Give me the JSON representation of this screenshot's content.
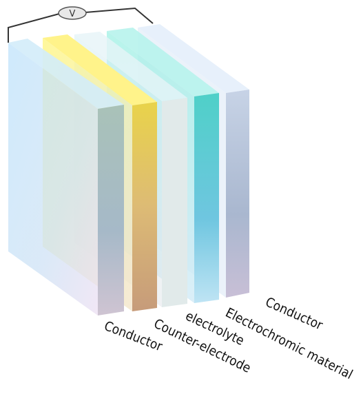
{
  "voltmeter": {
    "label": "V"
  },
  "labels": [
    "Conductor",
    "Counter-electrode",
    "electrolyte",
    "Electrochromic material",
    "Conductor"
  ]
}
